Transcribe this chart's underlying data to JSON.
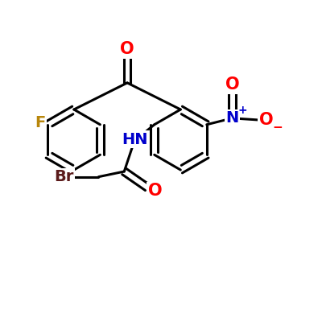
{
  "background_color": "#ffffff",
  "bond_color": "#000000",
  "bond_width": 2.2,
  "figsize": [
    4.0,
    4.0
  ],
  "dpi": 100,
  "colors": {
    "O": "#ff0000",
    "N": "#0000cc",
    "F": "#b8860b",
    "Br": "#5a1a1a",
    "C": "#000000",
    "NH": "#0000cc"
  },
  "font_size_atom": 14,
  "font_size_small": 9
}
